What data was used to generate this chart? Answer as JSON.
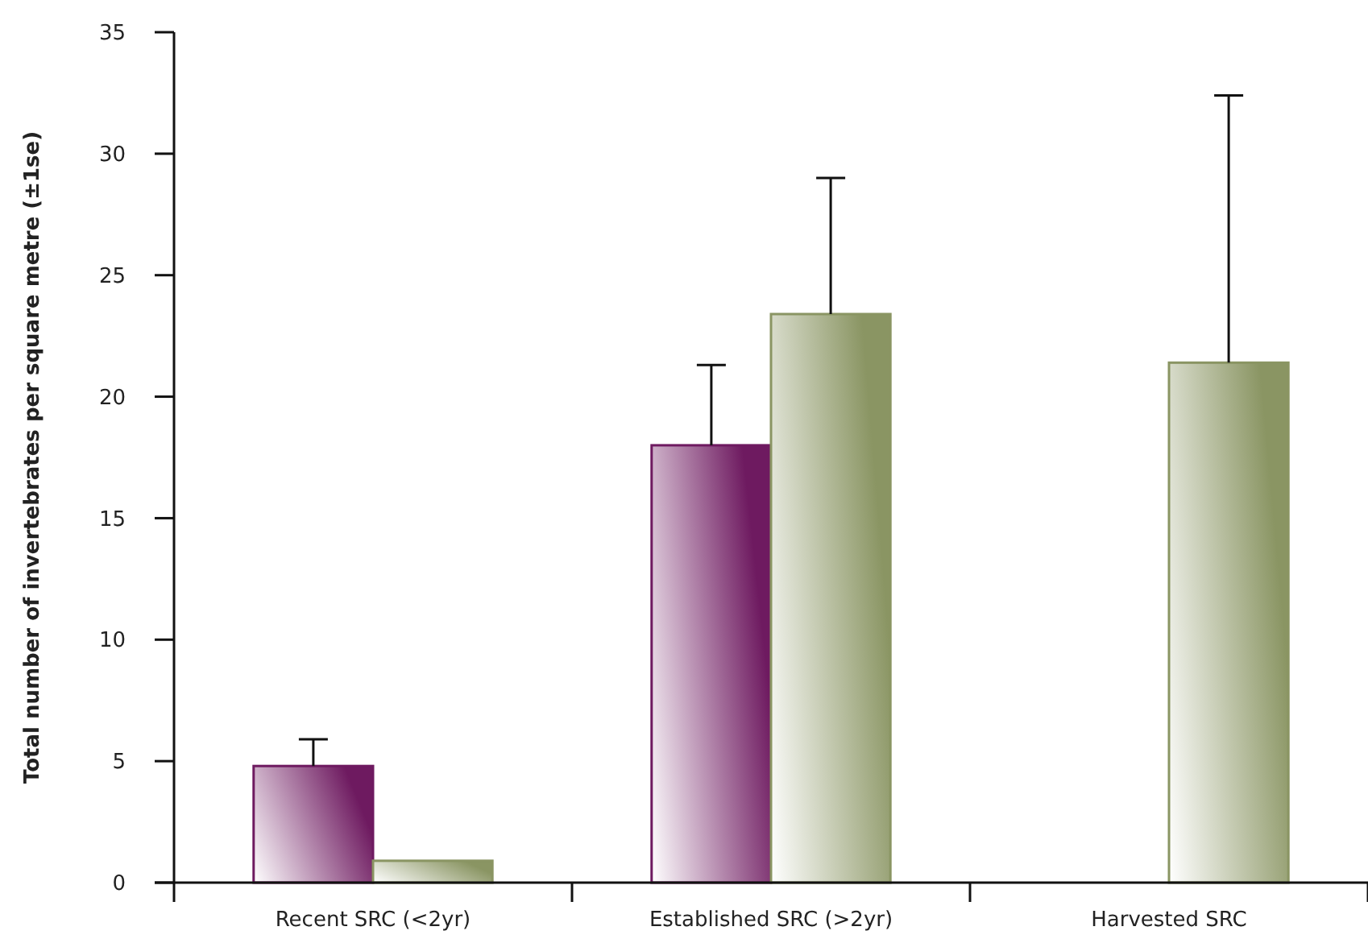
{
  "chart_data": {
    "type": "bar",
    "ylabel": "Total number of invertebrates per square metre (±1se)",
    "categories": [
      "Recent SRC (<2yr)",
      "Established SRC (>2yr)",
      "Harvested SRC"
    ],
    "series": [
      {
        "color": "#6e1a60",
        "values": [
          4.8,
          18.0,
          null
        ],
        "errors": [
          1.1,
          3.3,
          null
        ]
      },
      {
        "color": "#8a9563",
        "values": [
          0.9,
          23.4,
          21.4
        ],
        "errors": [
          null,
          5.6,
          11.0
        ]
      }
    ],
    "ylim": [
      0,
      35
    ],
    "yticks": [
      0,
      5,
      10,
      15,
      20,
      25,
      30,
      35
    ],
    "grid": false
  }
}
